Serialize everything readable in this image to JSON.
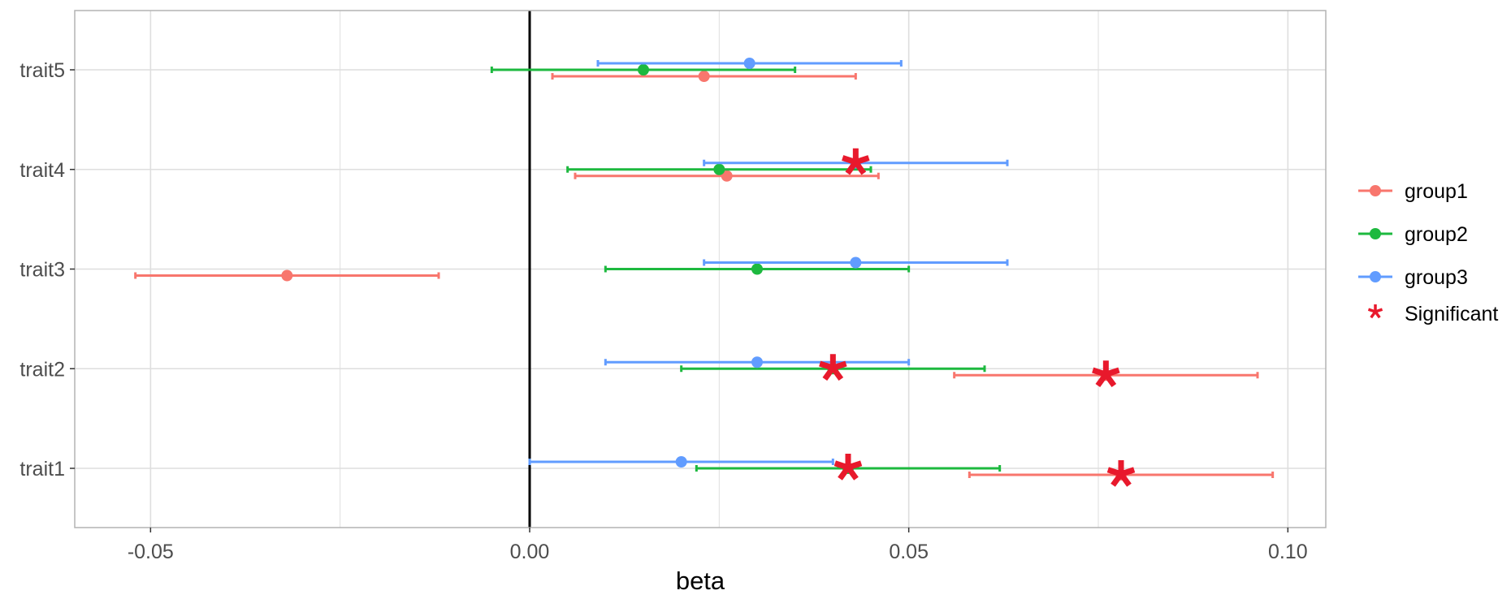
{
  "chart_data": {
    "type": "scatter",
    "subtype": "forest-plot",
    "title": "",
    "xlabel": "beta",
    "ylabel": "",
    "xlim": [
      -0.06,
      0.105
    ],
    "x_ticks": [
      -0.05,
      0.0,
      0.05,
      0.1
    ],
    "x_tick_labels": [
      "-0.05",
      "0.00",
      "0.05",
      "0.10"
    ],
    "x_minor_ticks": [
      -0.025,
      0.025,
      0.075
    ],
    "categories": [
      "trait1",
      "trait2",
      "trait3",
      "trait4",
      "trait5"
    ],
    "reference_line_x": 0,
    "grid": true,
    "legend_position": "right",
    "series": [
      {
        "name": "group1",
        "color": "#F8766D",
        "points": [
          {
            "trait": "trait1",
            "beta": 0.078,
            "lower": 0.058,
            "upper": 0.098,
            "significant": true
          },
          {
            "trait": "trait2",
            "beta": 0.076,
            "lower": 0.056,
            "upper": 0.096,
            "significant": true
          },
          {
            "trait": "trait3",
            "beta": -0.032,
            "lower": -0.052,
            "upper": -0.012,
            "significant": false
          },
          {
            "trait": "trait4",
            "beta": 0.026,
            "lower": 0.006,
            "upper": 0.046,
            "significant": false
          },
          {
            "trait": "trait5",
            "beta": 0.023,
            "lower": 0.003,
            "upper": 0.043,
            "significant": false
          }
        ]
      },
      {
        "name": "group2",
        "color": "#1DB93F",
        "points": [
          {
            "trait": "trait1",
            "beta": 0.042,
            "lower": 0.022,
            "upper": 0.062,
            "significant": true
          },
          {
            "trait": "trait2",
            "beta": 0.04,
            "lower": 0.02,
            "upper": 0.06,
            "significant": true
          },
          {
            "trait": "trait3",
            "beta": 0.03,
            "lower": 0.01,
            "upper": 0.05,
            "significant": false
          },
          {
            "trait": "trait4",
            "beta": 0.025,
            "lower": 0.005,
            "upper": 0.045,
            "significant": false
          },
          {
            "trait": "trait5",
            "beta": 0.015,
            "lower": -0.005,
            "upper": 0.035,
            "significant": false
          }
        ]
      },
      {
        "name": "group3",
        "color": "#619CFF",
        "points": [
          {
            "trait": "trait1",
            "beta": 0.02,
            "lower": 0.0,
            "upper": 0.04,
            "significant": false
          },
          {
            "trait": "trait2",
            "beta": 0.03,
            "lower": 0.01,
            "upper": 0.05,
            "significant": false
          },
          {
            "trait": "trait3",
            "beta": 0.043,
            "lower": 0.023,
            "upper": 0.063,
            "significant": false
          },
          {
            "trait": "trait4",
            "beta": 0.043,
            "lower": 0.023,
            "upper": 0.063,
            "significant": true
          },
          {
            "trait": "trait5",
            "beta": 0.029,
            "lower": 0.009,
            "upper": 0.049,
            "significant": false
          }
        ]
      }
    ],
    "significance_marker": {
      "label": "Significant",
      "symbol": "*",
      "color": "#E8192C"
    }
  },
  "colors": {
    "panel_border": "#b3b3b3",
    "grid": "#dedede",
    "tick_text": "#4d4d4d",
    "reference_line": "#000000"
  }
}
